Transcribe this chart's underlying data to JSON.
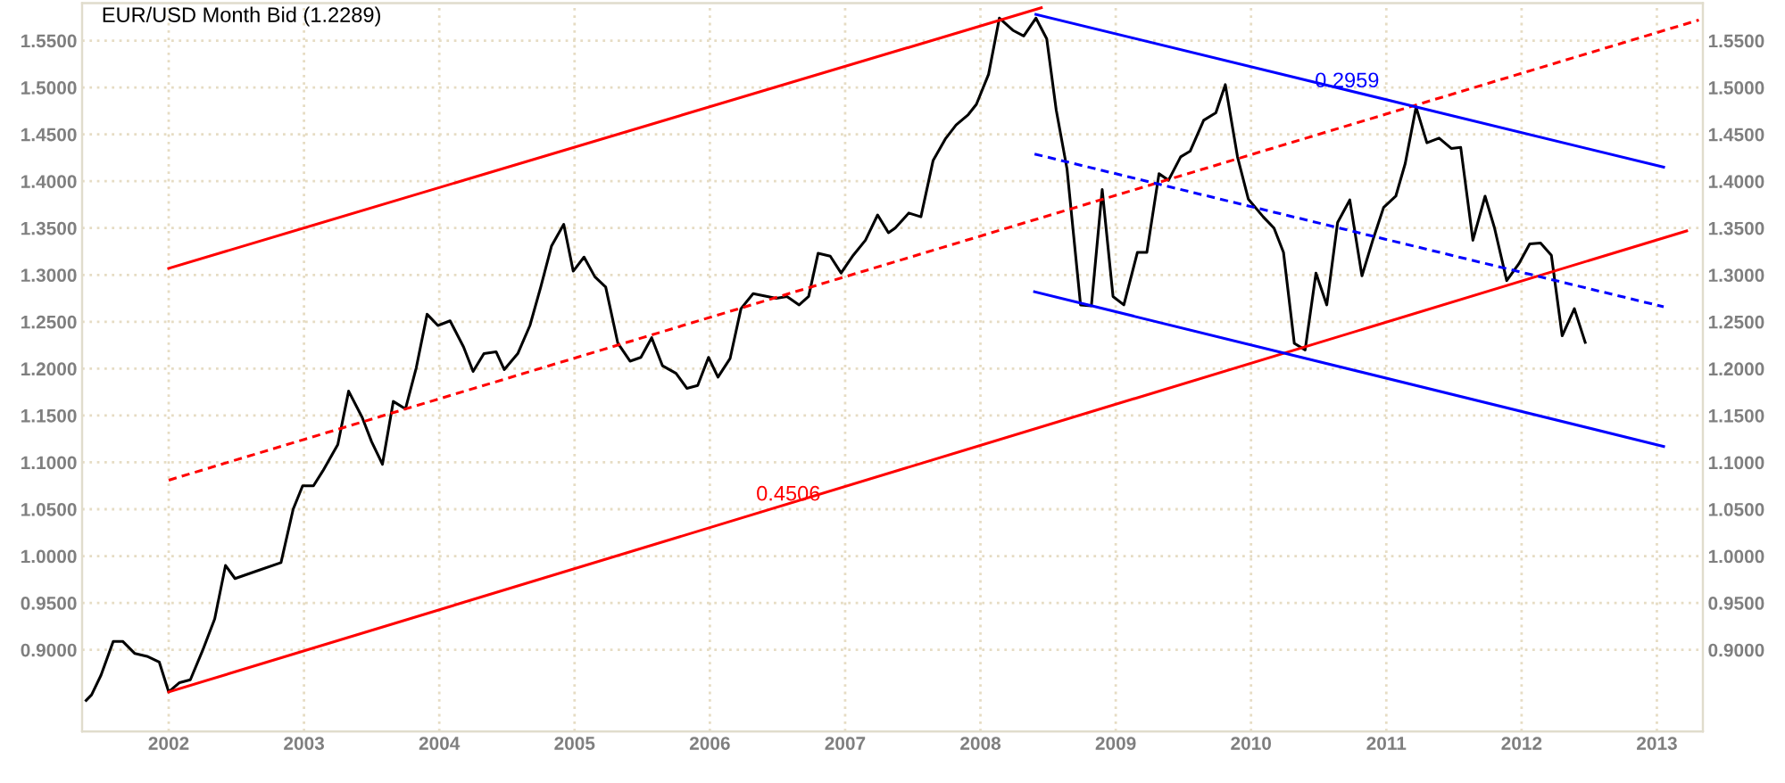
{
  "chart_data": {
    "type": "line",
    "title": "EUR/USD Month Bid (1.2289)",
    "xlim": [
      2001.36,
      2013.34
    ],
    "xticks": [
      2002,
      2003,
      2004,
      2005,
      2006,
      2007,
      2008,
      2009,
      2010,
      2011,
      2012,
      2013
    ],
    "ylim": [
      0.813,
      1.59
    ],
    "yticks": [
      {
        "value": 0.9,
        "label": "0.9000"
      },
      {
        "value": 0.95,
        "label": "0.9500"
      },
      {
        "value": 1.0,
        "label": "1.0000"
      },
      {
        "value": 1.05,
        "label": "1.0500"
      },
      {
        "value": 1.1,
        "label": "1.1000"
      },
      {
        "value": 1.15,
        "label": "1.1500"
      },
      {
        "value": 1.2,
        "label": "1.2000"
      },
      {
        "value": 1.25,
        "label": "1.2500"
      },
      {
        "value": 1.3,
        "label": "1.3000"
      },
      {
        "value": 1.35,
        "label": "1.3500"
      },
      {
        "value": 1.4,
        "label": "1.4000"
      },
      {
        "value": 1.45,
        "label": "1.4500"
      },
      {
        "value": 1.5,
        "label": "1.5000"
      },
      {
        "value": 1.55,
        "label": "1.5500"
      }
    ],
    "y2lim": [
      0.813,
      1.59
    ],
    "y2ticks": [
      {
        "value": 0.9,
        "label": "0.9000"
      },
      {
        "value": 0.95,
        "label": "0.9500"
      },
      {
        "value": 1.0,
        "label": "1.0000"
      },
      {
        "value": 1.05,
        "label": "1.0500"
      },
      {
        "value": 1.1,
        "label": "1.1000"
      },
      {
        "value": 1.15,
        "label": "1.1500"
      },
      {
        "value": 1.2,
        "label": "1.2000"
      },
      {
        "value": 1.25,
        "label": "1.2500"
      },
      {
        "value": 1.3,
        "label": "1.3000"
      },
      {
        "value": 1.35,
        "label": "1.3500"
      },
      {
        "value": 1.4,
        "label": "1.4000"
      },
      {
        "value": 1.45,
        "label": "1.4500"
      },
      {
        "value": 1.5,
        "label": "1.5000"
      },
      {
        "value": 1.55,
        "label": "1.5500"
      }
    ],
    "grid": true,
    "series": [
      {
        "color": "#000000",
        "line_style": "solid",
        "x": [
          2001.39,
          2001.43,
          2001.5,
          2001.59,
          2001.66,
          2001.75,
          2001.84,
          2001.93,
          2002.0,
          2002.08,
          2002.16,
          2002.25,
          2002.34,
          2002.42,
          2002.49,
          2002.67,
          2002.83,
          2002.92,
          2002.99,
          2003.07,
          2003.14,
          2003.25,
          2003.33,
          2003.43,
          2003.5,
          2003.58,
          2003.66,
          2003.75,
          2003.83,
          2003.91,
          2003.99,
          2004.08,
          2004.18,
          2004.25,
          2004.33,
          2004.42,
          2004.48,
          2004.58,
          2004.67,
          2004.75,
          2004.83,
          2004.92,
          2004.99,
          2005.07,
          2005.15,
          2005.23,
          2005.32,
          2005.41,
          2005.49,
          2005.57,
          2005.65,
          2005.75,
          2005.83,
          2005.91,
          2005.99,
          2006.06,
          2006.15,
          2006.23,
          2006.32,
          2006.49,
          2006.57,
          2006.66,
          2006.73,
          2006.8,
          2006.89,
          2006.97,
          2007.06,
          2007.15,
          2007.24,
          2007.32,
          2007.37,
          2007.47,
          2007.56,
          2007.65,
          2007.74,
          2007.82,
          2007.91,
          2007.97,
          2008.06,
          2008.14,
          2008.24,
          2008.32,
          2008.41,
          2008.49,
          2008.56,
          2008.64,
          2008.74,
          2008.82,
          2008.9,
          2008.98,
          2009.06,
          2009.16,
          2009.23,
          2009.32,
          2009.39,
          2009.48,
          2009.55,
          2009.65,
          2009.74,
          2009.81,
          2009.9,
          2009.98,
          2010.09,
          2010.17,
          2010.24,
          2010.32,
          2010.4,
          2010.48,
          2010.56,
          2010.64,
          2010.73,
          2010.82,
          2010.9,
          2010.98,
          2011.07,
          2011.14,
          2011.22,
          2011.3,
          2011.39,
          2011.48,
          2011.55,
          2011.64,
          2011.73,
          2011.8,
          2011.89,
          2011.98,
          2012.06,
          2012.14,
          2012.22,
          2012.3,
          2012.39,
          2012.47
        ],
        "values": [
          0.846,
          0.852,
          0.873,
          0.909,
          0.909,
          0.896,
          0.893,
          0.887,
          0.855,
          0.865,
          0.868,
          0.899,
          0.933,
          0.99,
          0.976,
          0.985,
          0.993,
          1.05,
          1.075,
          1.075,
          1.091,
          1.119,
          1.176,
          1.148,
          1.122,
          1.098,
          1.165,
          1.157,
          1.201,
          1.258,
          1.246,
          1.251,
          1.223,
          1.197,
          1.216,
          1.218,
          1.199,
          1.216,
          1.246,
          1.287,
          1.331,
          1.354,
          1.304,
          1.319,
          1.298,
          1.287,
          1.227,
          1.208,
          1.212,
          1.233,
          1.203,
          1.195,
          1.179,
          1.182,
          1.212,
          1.191,
          1.211,
          1.264,
          1.28,
          1.275,
          1.277,
          1.268,
          1.277,
          1.323,
          1.32,
          1.302,
          1.321,
          1.337,
          1.364,
          1.345,
          1.35,
          1.366,
          1.362,
          1.422,
          1.445,
          1.46,
          1.471,
          1.482,
          1.514,
          1.574,
          1.561,
          1.555,
          1.574,
          1.552,
          1.476,
          1.413,
          1.268,
          1.267,
          1.391,
          1.277,
          1.268,
          1.324,
          1.324,
          1.408,
          1.401,
          1.426,
          1.432,
          1.465,
          1.473,
          1.503,
          1.426,
          1.381,
          1.362,
          1.35,
          1.324,
          1.227,
          1.22,
          1.302,
          1.268,
          1.356,
          1.38,
          1.299,
          1.337,
          1.372,
          1.384,
          1.419,
          1.479,
          1.441,
          1.446,
          1.435,
          1.436,
          1.337,
          1.384,
          1.35,
          1.294,
          1.312,
          1.333,
          1.334,
          1.321,
          1.235,
          1.264,
          1.228
        ]
      },
      {
        "color": "#ff0000",
        "line_style": "solid",
        "x": [
          2002.0,
          2008.45
        ],
        "values": [
          1.307,
          1.585
        ]
      },
      {
        "color": "#ff0000",
        "line_style": "dashed",
        "x": [
          2002.0,
          2013.31
        ],
        "values": [
          1.081,
          1.572
        ]
      },
      {
        "color": "#ff0000",
        "line_style": "solid",
        "x": [
          2002.0,
          2013.22
        ],
        "values": [
          0.855,
          1.347
        ]
      },
      {
        "color": "#0000ff",
        "line_style": "solid",
        "x": [
          2008.41,
          2013.05
        ],
        "values": [
          1.578,
          1.415
        ]
      },
      {
        "color": "#0000ff",
        "line_style": "dashed",
        "x": [
          2008.4,
          2013.05
        ],
        "values": [
          1.429,
          1.266
        ]
      },
      {
        "color": "#0000ff",
        "line_style": "solid",
        "x": [
          2008.4,
          2013.05
        ],
        "values": [
          1.282,
          1.117
        ]
      }
    ],
    "annotations": [
      {
        "text": "0.4506",
        "x": 2006.58,
        "y": 1.065
      },
      {
        "text": "0.2959",
        "x": 2010.71,
        "y": 1.506
      }
    ]
  }
}
